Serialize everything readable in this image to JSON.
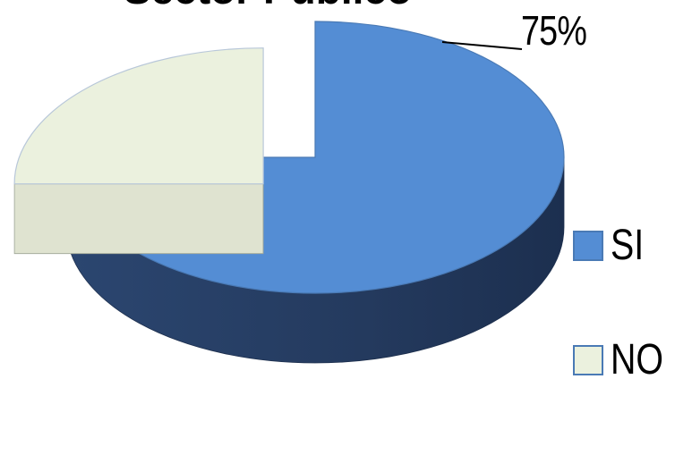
{
  "chart_data": {
    "type": "pie",
    "title": "Sector Publico",
    "slices": [
      {
        "label": "SI",
        "value": 75,
        "data_label": "75%",
        "color": "#548dd4",
        "side_color": "#243a5e"
      },
      {
        "label": "NO",
        "value": 25,
        "data_label": "",
        "color": "#ebf1de",
        "side_color": "#a9ac9c"
      }
    ],
    "legend": {
      "position": "right",
      "items": [
        {
          "label": "SI",
          "color": "#548dd4"
        },
        {
          "label": "NO",
          "color": "#ebf1de"
        }
      ]
    },
    "style": "3d-exploded"
  }
}
